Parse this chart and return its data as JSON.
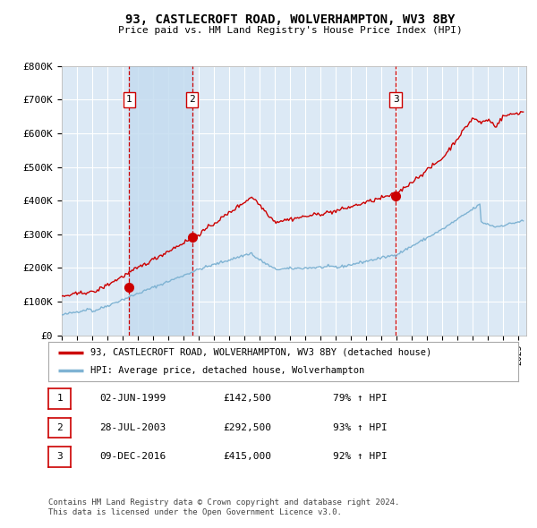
{
  "title": "93, CASTLECROFT ROAD, WOLVERHAMPTON, WV3 8BY",
  "subtitle": "Price paid vs. HM Land Registry's House Price Index (HPI)",
  "background_color": "#ffffff",
  "plot_bg_color": "#dce9f5",
  "grid_color": "#ffffff",
  "red_line_color": "#cc0000",
  "blue_line_color": "#7fb3d3",
  "sale_marker_color": "#cc0000",
  "vline_color": "#cc0000",
  "ylim": [
    0,
    800000
  ],
  "yticks": [
    0,
    100000,
    200000,
    300000,
    400000,
    500000,
    600000,
    700000,
    800000
  ],
  "ytick_labels": [
    "£0",
    "£100K",
    "£200K",
    "£300K",
    "£400K",
    "£500K",
    "£600K",
    "£700K",
    "£800K"
  ],
  "xlim_start": 1995.0,
  "xlim_end": 2025.5,
  "sale_events": [
    {
      "label": "1",
      "date_year": 1999.42,
      "price": 142500,
      "hpi_pct": 79,
      "date_str": "02-JUN-1999",
      "price_str": "£142,500"
    },
    {
      "label": "2",
      "date_year": 2003.56,
      "price": 292500,
      "hpi_pct": 93,
      "date_str": "28-JUL-2003",
      "price_str": "£292,500"
    },
    {
      "label": "3",
      "date_year": 2016.93,
      "price": 415000,
      "hpi_pct": 92,
      "date_str": "09-DEC-2016",
      "price_str": "£415,000"
    }
  ],
  "legend1_label": "93, CASTLECROFT ROAD, WOLVERHAMPTON, WV3 8BY (detached house)",
  "legend2_label": "HPI: Average price, detached house, Wolverhampton",
  "footer1": "Contains HM Land Registry data © Crown copyright and database right 2024.",
  "footer2": "This data is licensed under the Open Government Licence v3.0.",
  "table_rows": [
    {
      "num": "1",
      "date": "02-JUN-1999",
      "price": "£142,500",
      "hpi": "79% ↑ HPI"
    },
    {
      "num": "2",
      "date": "28-JUL-2003",
      "price": "£292,500",
      "hpi": "93% ↑ HPI"
    },
    {
      "num": "3",
      "date": "09-DEC-2016",
      "price": "£415,000",
      "hpi": "92% ↑ HPI"
    }
  ]
}
